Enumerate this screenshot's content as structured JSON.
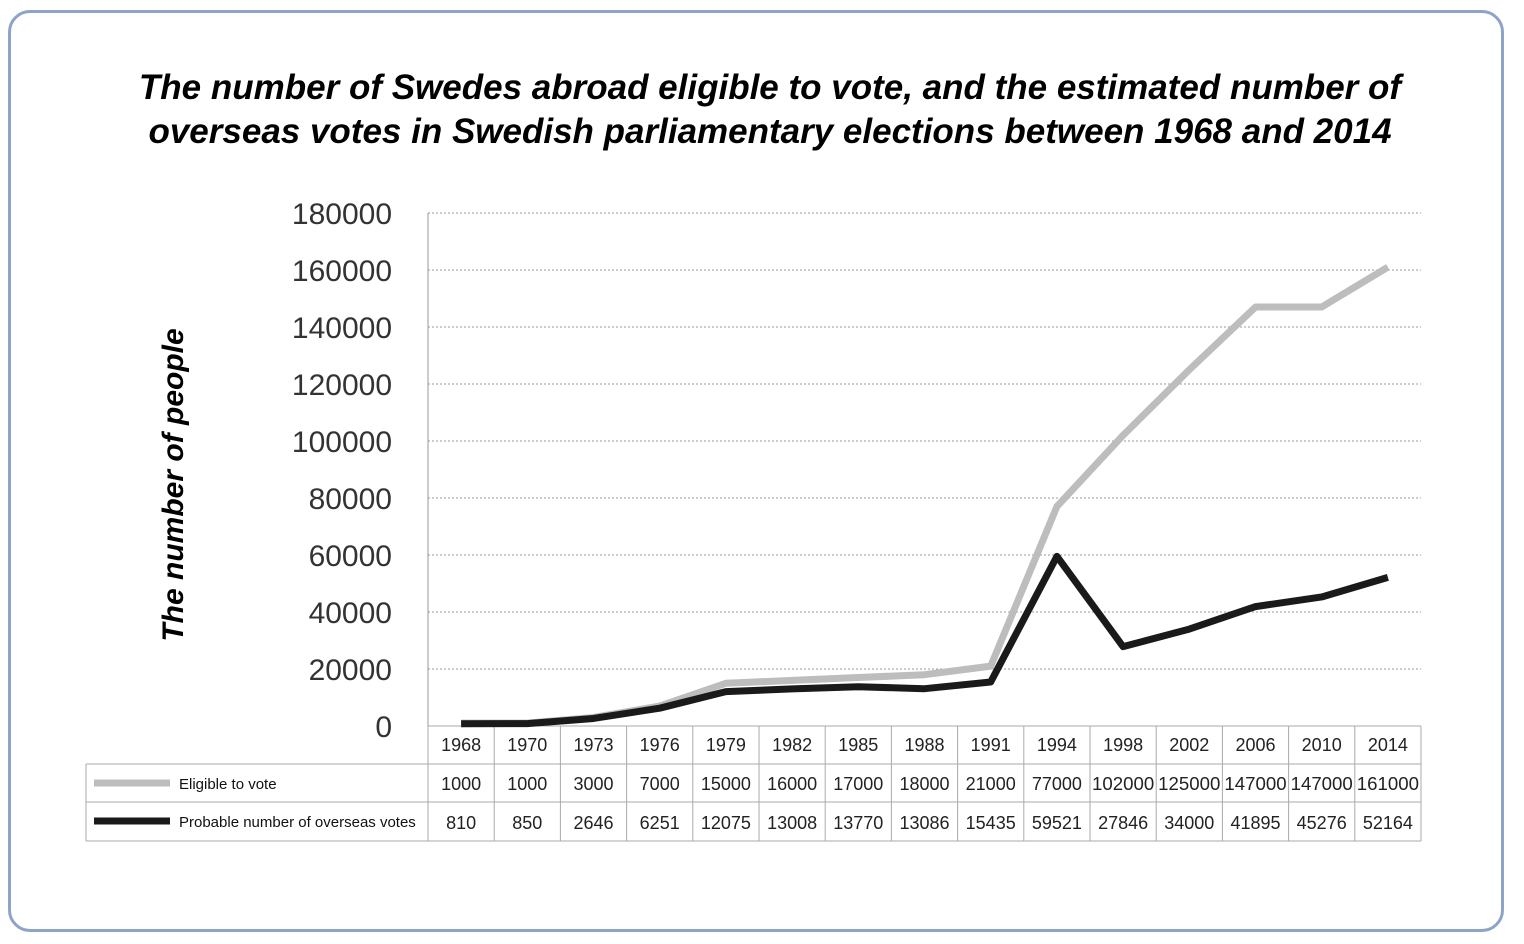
{
  "title": {
    "line1": "The number of Swedes abroad eligible to vote, and the estimated number of",
    "line2": "overseas votes in Swedish parliamentary elections between 1968 and 2014"
  },
  "chart_data": {
    "type": "line",
    "title": "The number of Swedes abroad eligible to vote, and the estimated number of overseas votes in Swedish parliamentary elections between 1968 and 2014",
    "xlabel": "",
    "ylabel": "The number of people",
    "ylim": [
      0,
      180000
    ],
    "yticks": [
      "0",
      "20000",
      "40000",
      "60000",
      "80000",
      "100000",
      "120000",
      "140000",
      "160000",
      "180000"
    ],
    "grid": "horizontal dotted",
    "categories": [
      "1968",
      "1970",
      "1973",
      "1976",
      "1979",
      "1982",
      "1985",
      "1988",
      "1991",
      "1994",
      "1998",
      "2002",
      "2006",
      "2010",
      "2014"
    ],
    "series": [
      {
        "name": "Eligible to vote",
        "color": "#bdbdbd",
        "values": [
          1000,
          1000,
          3000,
          7000,
          15000,
          16000,
          17000,
          18000,
          21000,
          77000,
          102000,
          125000,
          147000,
          147000,
          161000
        ]
      },
      {
        "name": "Probable number of overseas votes",
        "color": "#1a1a1a",
        "values": [
          810,
          850,
          2646,
          6251,
          12075,
          13008,
          13770,
          13086,
          15435,
          59521,
          27846,
          34000,
          41895,
          45276,
          52164
        ]
      }
    ],
    "legend": "data-table-bottom"
  }
}
